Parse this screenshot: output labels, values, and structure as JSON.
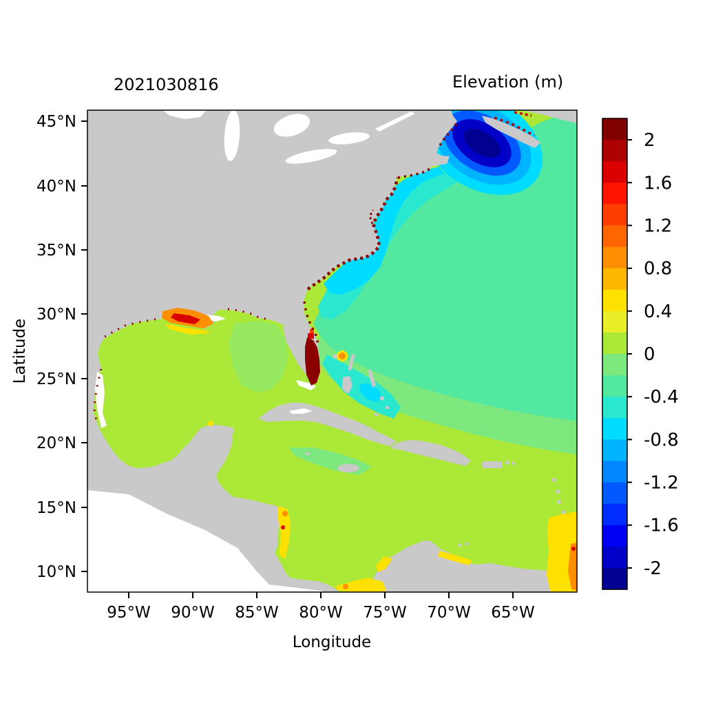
{
  "chart_data": {
    "type": "heatmap",
    "title": "2021030816",
    "colorbar_title": "Elevation (m)",
    "xlabel": "Longitude",
    "ylabel": "Latitude",
    "units": "m",
    "map_region": "Gulf of Mexico, Caribbean Sea and western North Atlantic",
    "xticks": [
      "95°W",
      "90°W",
      "85°W",
      "80°W",
      "75°W",
      "70°W",
      "65°W"
    ],
    "yticks": [
      "45°N",
      "40°N",
      "35°N",
      "30°N",
      "25°N",
      "20°N",
      "15°N",
      "10°N"
    ],
    "lon_range_deg_west": [
      98.2,
      60.1
    ],
    "lat_range_deg_north": [
      8.4,
      45.9
    ],
    "grid": false,
    "legend_position": "right-colorbar",
    "colorbar": {
      "range": [
        -2.2,
        2.2
      ],
      "level_step": 0.2,
      "tick_labels": [
        "2",
        "1.6",
        "1.2",
        "0.8",
        "0.4",
        "0",
        "-0.4",
        "-0.8",
        "-1.2",
        "-1.6",
        "-2"
      ],
      "colors_top_to_bottom": [
        "#800000",
        "#ad0000",
        "#db0000",
        "#ff1400",
        "#ff3d00",
        "#ff6600",
        "#ff8f00",
        "#ffb800",
        "#ffe100",
        "#e8ee28",
        "#abe838",
        "#7de87d",
        "#52e8a0",
        "#2ae8cf",
        "#00dcff",
        "#00b4ff",
        "#0087ff",
        "#005aff",
        "#002dff",
        "#0000f5",
        "#0000c8",
        "#000091"
      ]
    },
    "land_color": "#c9c9c9",
    "no_data_color": "#ffffff",
    "features": [
      {
        "region": "Gulf of Mexico and Caribbean interior",
        "approx_elevation_m": 0.1
      },
      {
        "region": "NW Atlantic offshore 28-45N",
        "approx_elevation_m": -0.3
      },
      {
        "region": "US east coast nearshore 33-41N",
        "approx_elevation_m": -0.7
      },
      {
        "region": "Gulf of Maine / Bay of Fundy",
        "approx_elevation_m": -2.0,
        "note": "dark blue minimum"
      },
      {
        "region": "SE Florida coast plume",
        "approx_elevation_m": 2.0,
        "note": "dark red maximum"
      },
      {
        "region": "Louisiana shelf",
        "approx_elevation_m": 1.0
      },
      {
        "region": "Nicaragua / Honduras coast",
        "approx_elevation_m": 0.5
      },
      {
        "region": "Panama / Colombia coast",
        "approx_elevation_m": 0.5
      },
      {
        "region": "SE corner near 60W 10-15N",
        "approx_elevation_m": 0.6
      },
      {
        "region": "coastline boundary cells",
        "note": "scattered dark-red speckles > 2 m along coasts"
      },
      {
        "region": "Pacific side of Central America",
        "note": "outside model domain, white"
      }
    ]
  }
}
